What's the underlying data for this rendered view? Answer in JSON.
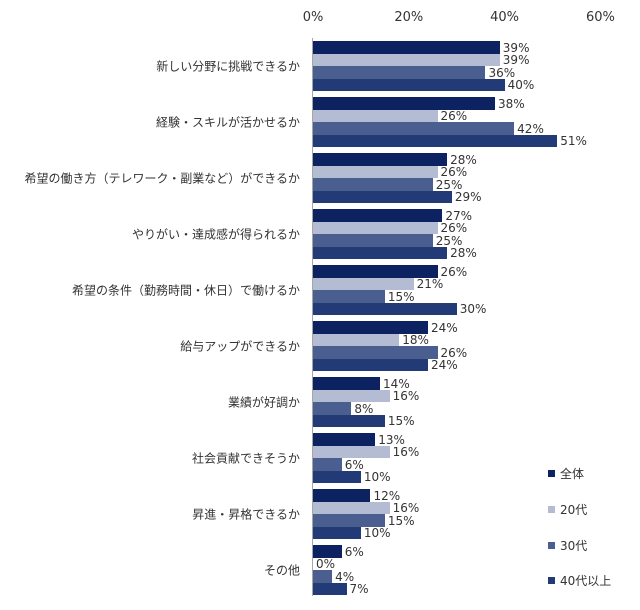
{
  "chart_data": {
    "type": "bar",
    "orientation": "horizontal",
    "title": "",
    "xlabel": "",
    "ylabel": "",
    "xlim": [
      0,
      60
    ],
    "x_ticks": [
      "0%",
      "20%",
      "40%",
      "60%"
    ],
    "grid": false,
    "legend_position": "right-bottom",
    "categories": [
      "新しい分野に挑戦できるか",
      "経験・スキルが活かせるか",
      "希望の働き方（テレワーク・副業など）ができるか",
      "やりがい・達成感が得られるか",
      "希望の条件（勤務時間・休日）で働けるか",
      "給与アップができるか",
      "業績が好調か",
      "社会貢献できそうか",
      "昇進・昇格できるか",
      "その他"
    ],
    "series": [
      {
        "name": "全体",
        "color": "#0d2260",
        "values": [
          39,
          38,
          28,
          27,
          26,
          24,
          14,
          13,
          12,
          6
        ]
      },
      {
        "name": "20代",
        "color": "#b4bcd4",
        "values": [
          39,
          26,
          26,
          26,
          21,
          18,
          16,
          16,
          16,
          0
        ]
      },
      {
        "name": "30代",
        "color": "#4a5f8f",
        "values": [
          36,
          42,
          25,
          25,
          15,
          26,
          8,
          6,
          15,
          4
        ]
      },
      {
        "name": "40代以上",
        "color": "#223a76",
        "values": [
          40,
          51,
          29,
          28,
          30,
          24,
          15,
          10,
          10,
          7
        ]
      }
    ],
    "value_suffix": "%"
  }
}
